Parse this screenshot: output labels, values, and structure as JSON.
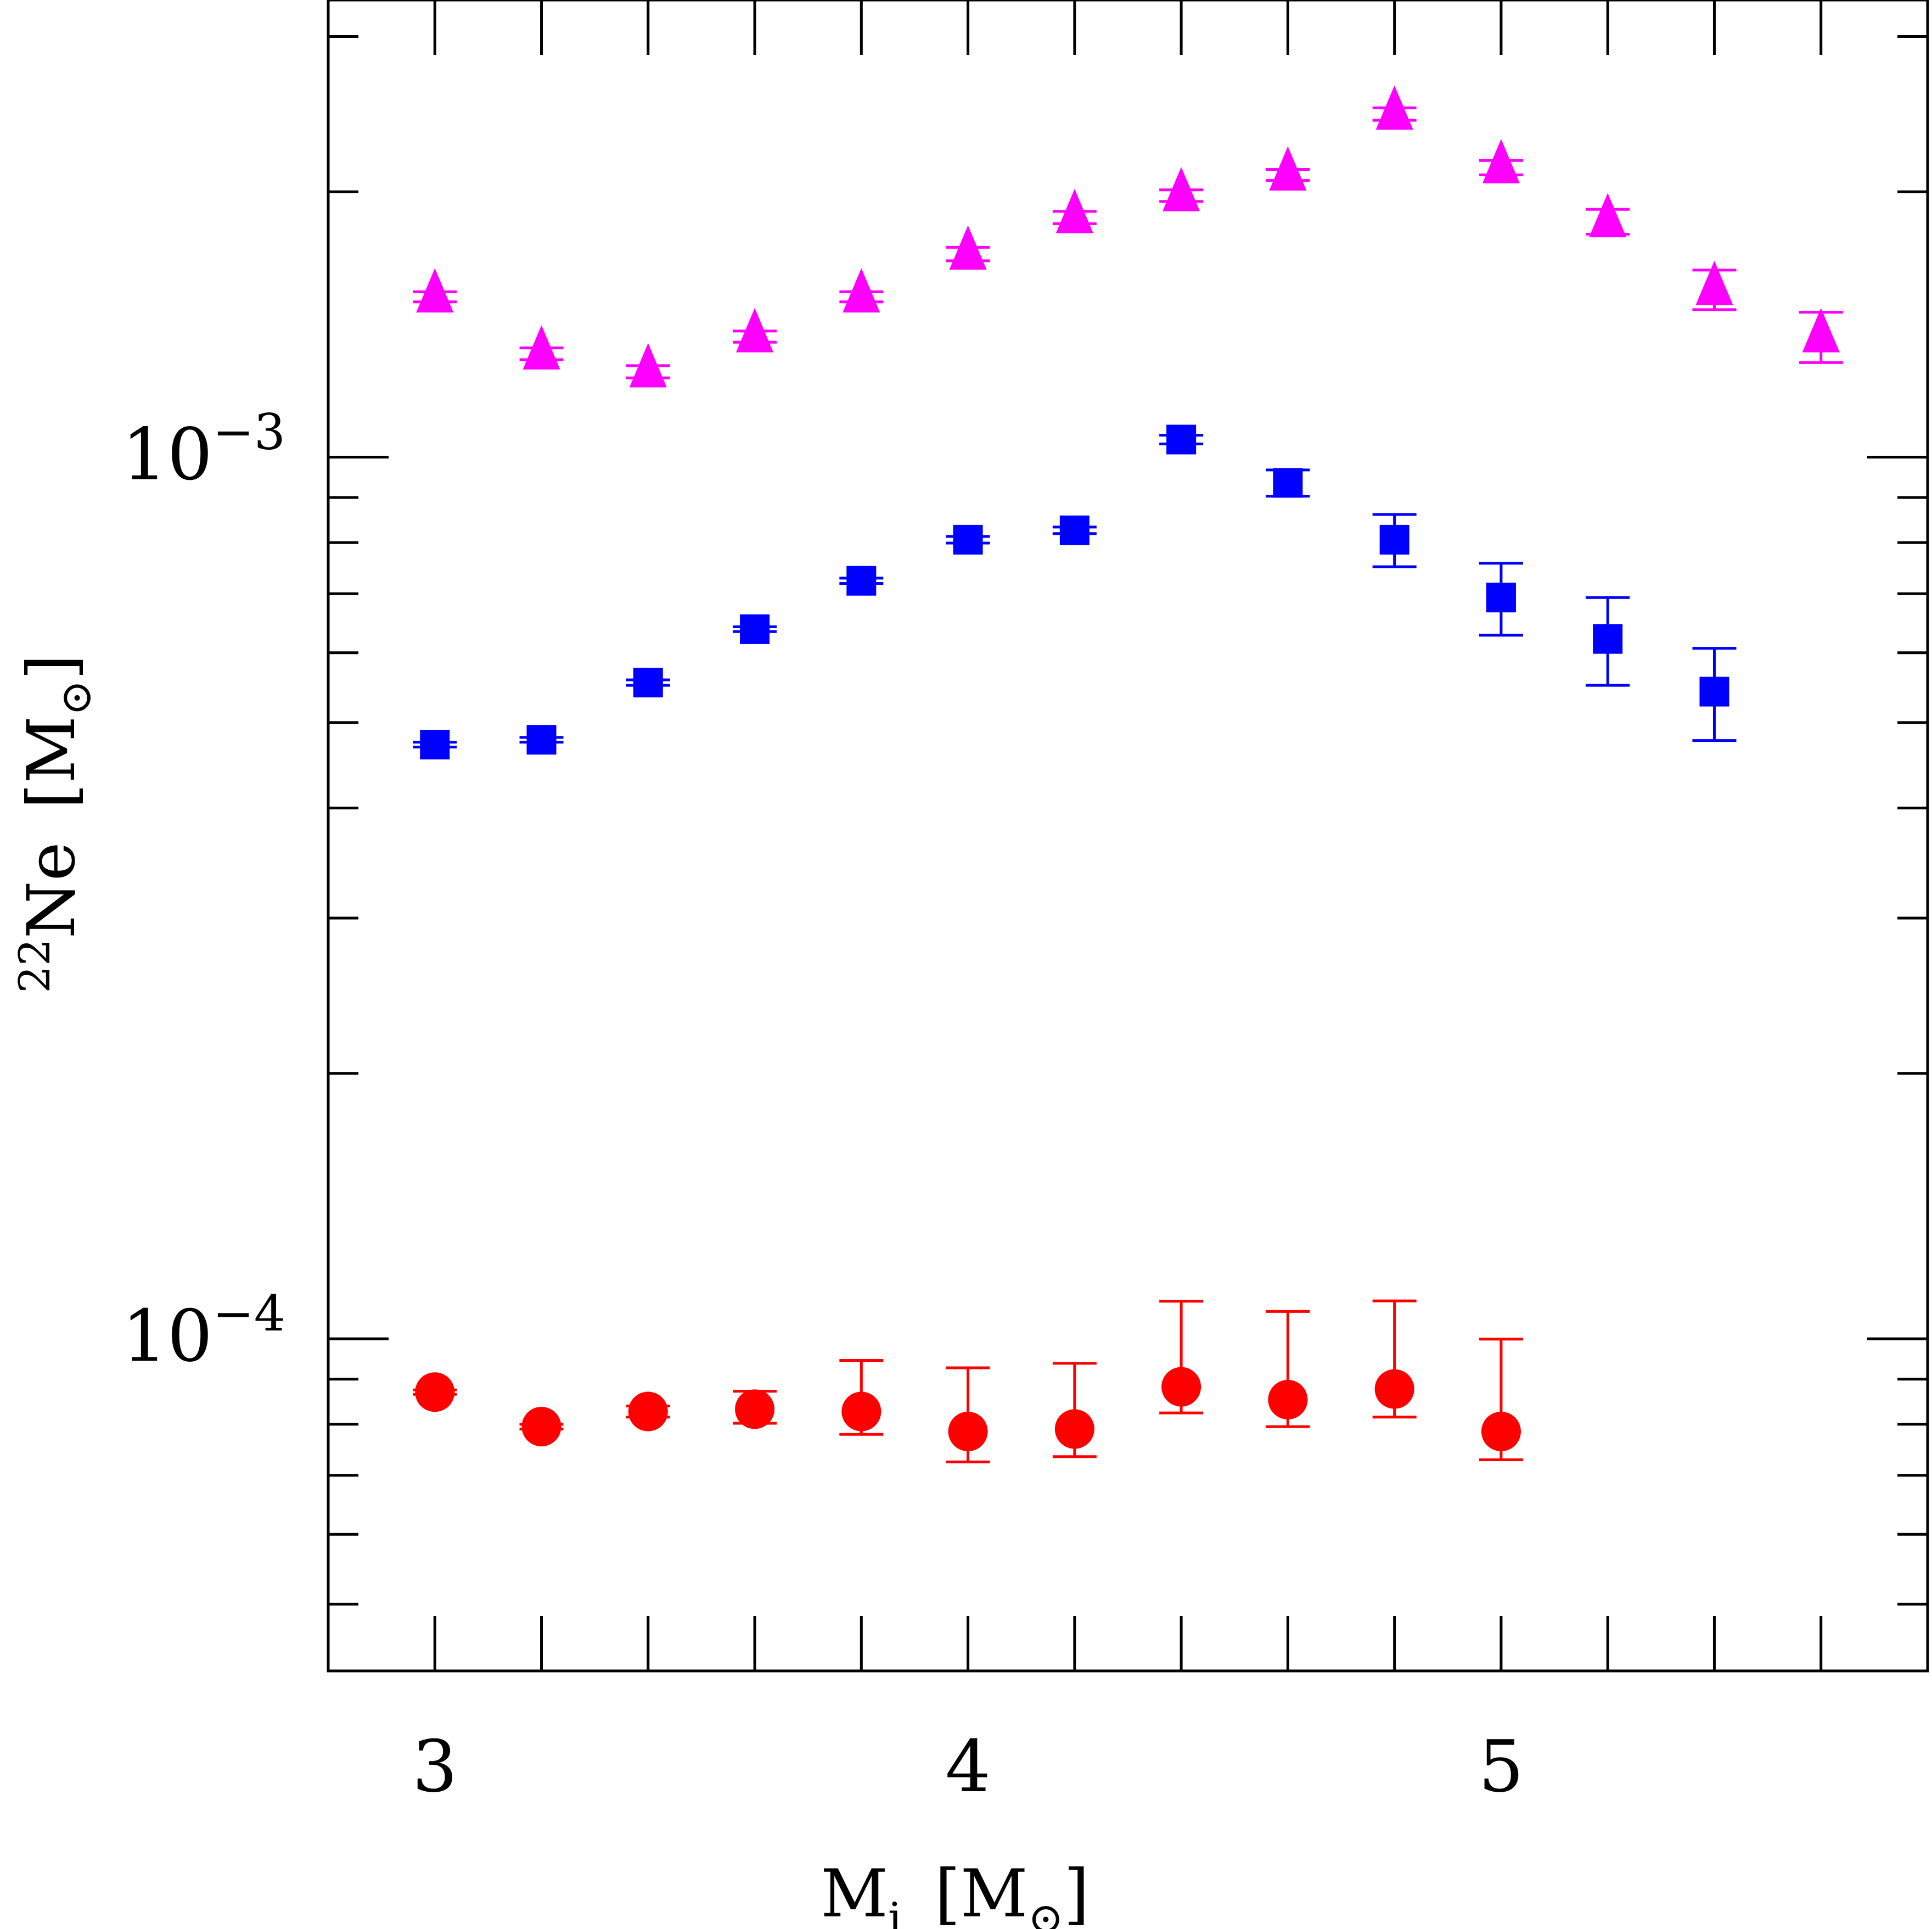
{
  "chart_data": {
    "type": "scatter",
    "title": "",
    "xlabel": {
      "main": "M",
      "sub": "i",
      "bracket_open": "[",
      "unit": "M",
      "unit_symbol": "⊙",
      "bracket_close": "]"
    },
    "ylabel": {
      "sup": "22",
      "main": "Ne",
      "bracket_open": "[",
      "unit": "M",
      "unit_symbol": "⊙",
      "bracket_close": "]"
    },
    "xlim": [
      2.8,
      5.8
    ],
    "ylim": [
      4.2e-05,
      0.0033
    ],
    "y_scale": "log",
    "x_ticks": [
      {
        "value": 3,
        "label": "3"
      },
      {
        "value": 4,
        "label": "4"
      },
      {
        "value": 5,
        "label": "5"
      }
    ],
    "x_minor_ticks": [
      3,
      3.2,
      3.4,
      3.6,
      3.8,
      4,
      4.2,
      4.4,
      4.6,
      4.8,
      5,
      5.2,
      5.4,
      5.6
    ],
    "y_ticks": [
      {
        "value": 0.001,
        "base": "10",
        "exponent": "−3"
      },
      {
        "value": 0.0001,
        "base": "10",
        "exponent": "−4"
      }
    ],
    "y_minor_ticks": [
      5e-05,
      6e-05,
      7e-05,
      8e-05,
      9e-05,
      0.0002,
      0.0003,
      0.0004,
      0.0005,
      0.0006,
      0.0007,
      0.0008,
      0.0009,
      0.002,
      0.003
    ],
    "series": [
      {
        "name": "triangles",
        "color": "#ff00ff",
        "marker": "triangle",
        "x": [
          3.0,
          3.2,
          3.4,
          3.6,
          3.8,
          4.0,
          4.2,
          4.4,
          4.6,
          4.8,
          5.0,
          5.2,
          5.4,
          5.6
        ],
        "y": [
          0.00152,
          0.00131,
          0.00125,
          0.00137,
          0.00152,
          0.0017,
          0.00187,
          0.00198,
          0.00209,
          0.00245,
          0.00213,
          0.00185,
          0.00155,
          0.00137
        ],
        "err_low": [
          2e-05,
          2e-05,
          2e-05,
          2e-05,
          2e-05,
          3e-05,
          3e-05,
          3e-05,
          3e-05,
          4e-05,
          4e-05,
          6e-05,
          8e-05,
          9e-05
        ],
        "err_high": [
          2e-05,
          2e-05,
          2e-05,
          2e-05,
          2e-05,
          3e-05,
          3e-05,
          3e-05,
          3e-05,
          4e-05,
          4e-05,
          6e-05,
          8e-05,
          9e-05
        ]
      },
      {
        "name": "squares",
        "color": "#0000ff",
        "marker": "square",
        "x": [
          3.0,
          3.2,
          3.4,
          3.6,
          3.8,
          4.0,
          4.2,
          4.4,
          4.6,
          4.8,
          5.0,
          5.2,
          5.4
        ],
        "y": [
          0.000472,
          0.000478,
          0.000555,
          0.000638,
          0.000724,
          0.000806,
          0.000826,
          0.001047,
          0.000935,
          0.000806,
          0.000693,
          0.000622,
          0.000542
        ],
        "err_low": [
          3e-06,
          3e-06,
          4e-06,
          4e-06,
          5e-06,
          7e-06,
          7e-06,
          1.2e-05,
          3.2e-05,
          5.5e-05,
          6.5e-05,
          7.1e-05,
          6.5e-05
        ],
        "err_high": [
          3e-06,
          3e-06,
          4e-06,
          4e-06,
          5e-06,
          7e-06,
          7e-06,
          1.2e-05,
          3.2e-05,
          5.5e-05,
          6.5e-05,
          7.1e-05,
          6.5e-05
        ]
      },
      {
        "name": "circles",
        "color": "#ff0000",
        "marker": "circle",
        "x": [
          3.0,
          3.2,
          3.4,
          3.6,
          3.8,
          4.0,
          4.2,
          4.4,
          4.6,
          4.8,
          5.0
        ],
        "y": [
          8.7e-05,
          7.95e-05,
          8.27e-05,
          8.32e-05,
          8.27e-05,
          7.85e-05,
          7.9e-05,
          8.82e-05,
          8.53e-05,
          8.77e-05,
          7.85e-05
        ],
        "err_low": [
          5e-07,
          5e-07,
          1.2e-06,
          3e-06,
          4.8e-06,
          6e-06,
          5.5e-06,
          5.8e-06,
          5.8e-06,
          6.2e-06,
          5.6e-06
        ],
        "err_high": [
          5e-07,
          5e-07,
          1.2e-06,
          4e-06,
          1.18e-05,
          1.42e-05,
          1.48e-05,
          2.21e-05,
          2.21e-05,
          2.27e-05,
          2.14e-05
        ]
      }
    ]
  }
}
